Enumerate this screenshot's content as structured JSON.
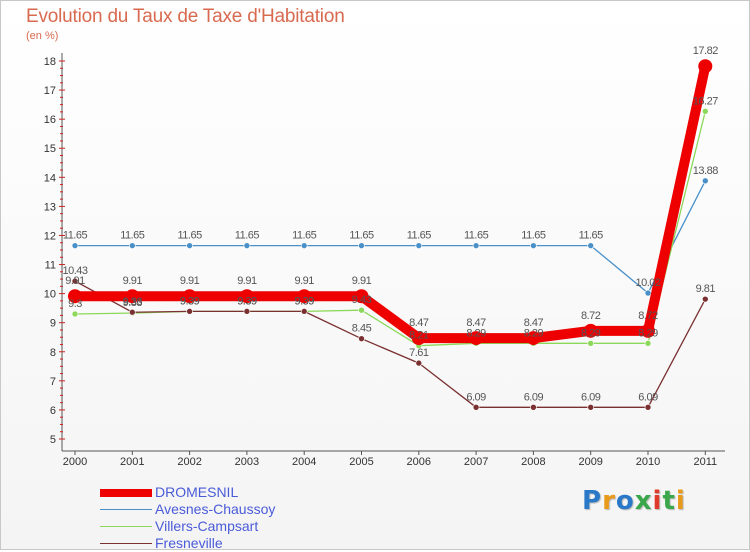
{
  "title": "Evolution du Taux de Taxe d'Habitation",
  "subtitle": "(en %)",
  "logo": {
    "text": "Proxiti",
    "colors": [
      "#2a78c8",
      "#e89a1a",
      "#2a78c8",
      "#3aa84a",
      "#e03a2a",
      "#3aa84a",
      "#e89a1a"
    ]
  },
  "chart_data": {
    "type": "line",
    "x": [
      2000,
      2001,
      2002,
      2003,
      2004,
      2005,
      2006,
      2007,
      2008,
      2009,
      2010,
      2011
    ],
    "ylim": [
      5,
      18
    ],
    "yticks": [
      5,
      6,
      7,
      8,
      9,
      10,
      11,
      12,
      13,
      14,
      15,
      16,
      17,
      18
    ],
    "grid": false,
    "legend": "bottom-left",
    "series": [
      {
        "name": "Avesnes-Chaussoy",
        "color": "#4a90c8",
        "values": [
          11.65,
          11.65,
          11.65,
          11.65,
          11.65,
          11.65,
          11.65,
          11.65,
          11.65,
          11.65,
          10.02,
          13.88
        ],
        "labels": [
          "11.65",
          "11.65",
          "11.65",
          "11.65",
          "11.65",
          "11.65",
          "11.65",
          "11.65",
          "11.65",
          "11.65",
          "10.02",
          "13.88"
        ]
      },
      {
        "name": "Villers-Campsart",
        "color": "#8cd85a",
        "values": [
          9.3,
          9.33,
          9.39,
          9.39,
          9.39,
          9.43,
          8.21,
          8.29,
          8.29,
          8.29,
          8.29,
          16.27
        ],
        "labels": [
          "9.3",
          "9.33",
          "9.39",
          "9.39",
          "9.39",
          "9.43",
          "8.21",
          "8.29",
          "8.29",
          "8.29",
          "8.29",
          "16.27"
        ]
      },
      {
        "name": "Fresneville",
        "color": "#7a3030",
        "values": [
          10.43,
          9.36,
          9.39,
          9.39,
          9.39,
          8.45,
          7.61,
          6.09,
          6.09,
          6.09,
          6.09,
          9.81
        ],
        "labels": [
          "10.43",
          "9.36",
          "9.39",
          "9.39",
          "9.39",
          "8.45",
          "7.61",
          "6.09",
          "6.09",
          "6.09",
          "6.09",
          "9.81"
        ]
      },
      {
        "name": "DROMESNIL",
        "color": "#ee0000",
        "values": [
          9.91,
          9.91,
          9.91,
          9.91,
          9.91,
          9.91,
          8.47,
          8.47,
          8.47,
          8.72,
          8.72,
          17.82
        ],
        "labels": [
          "9.91",
          "9.91",
          "9.91",
          "9.91",
          "9.91",
          "9.91",
          "8.47",
          "8.47",
          "8.47",
          "8.72",
          "8.72",
          "17.82"
        ]
      }
    ],
    "legend_order": [
      "DROMESNIL",
      "Avesnes-Chaussoy",
      "Villers-Campsart",
      "Fresneville"
    ]
  }
}
